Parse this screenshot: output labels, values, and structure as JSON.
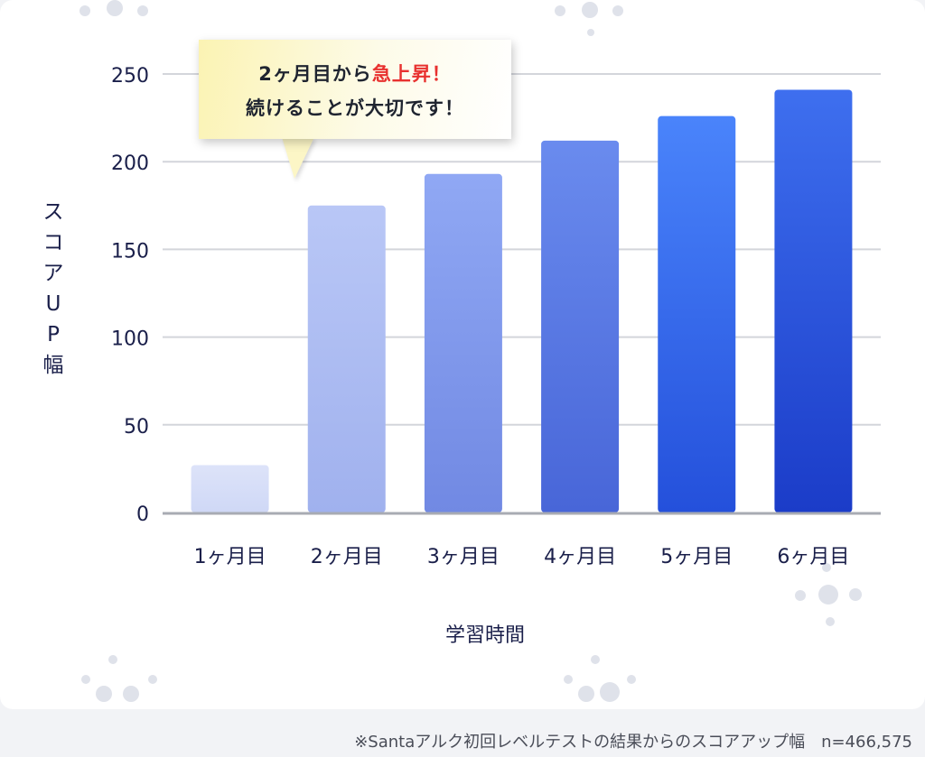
{
  "chart_data": {
    "type": "bar",
    "categories": [
      "1ヶ月目",
      "2ヶ月目",
      "3ヶ月目",
      "4ヶ月目",
      "5ヶ月目",
      "6ヶ月目"
    ],
    "values": [
      27,
      175,
      193,
      212,
      226,
      241
    ],
    "yticks": [
      0,
      50,
      100,
      150,
      200,
      250
    ],
    "ylim": [
      0,
      260
    ],
    "ylabel": "スコアUP幅",
    "xlabel": "学習時間",
    "grid": true,
    "colors": [
      [
        "#dde3f9",
        "#cfd8f6"
      ],
      [
        "#b9c7f6",
        "#a0b1ee"
      ],
      [
        "#90a8f4",
        "#7189e3"
      ],
      [
        "#6a8bee",
        "#4866d8"
      ],
      [
        "#4a84fb",
        "#2450db"
      ],
      [
        "#3e6fef",
        "#1b3cc8"
      ]
    ],
    "annotation": {
      "line1_prefix": "2ヶ月目から",
      "line1_highlight": "急上昇！",
      "line2": "続けることが大切です！"
    }
  },
  "footnote": "※Santaアルク初回レベルテストの結果からのスコアアップ幅　n=466,575"
}
